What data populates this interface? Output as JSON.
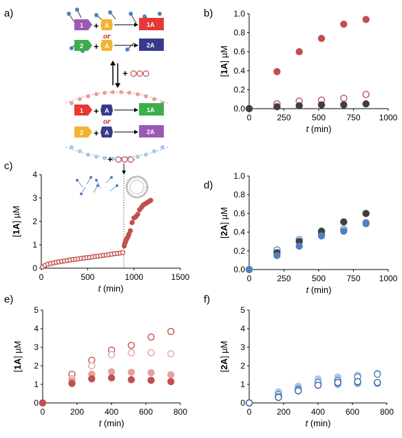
{
  "panels": {
    "a": "a)",
    "b": "b)",
    "c": "c)",
    "d": "d)",
    "e": "e)",
    "f": "f)"
  },
  "schematic": {
    "box_1": "1",
    "box_2": "2",
    "box_A": "A",
    "box_1A": "1A",
    "box_2A": "2A",
    "or": "or",
    "plus": "+"
  },
  "colors": {
    "red": "#c0504d",
    "dark": "#404040",
    "blue": "#4f81bd",
    "light_blue": "#a9c8e8",
    "light_red": "#e6a0a0",
    "purple": "#9b59b6",
    "yellow": "#f2b430",
    "green": "#3cae4a",
    "navy": "#3a3a8c",
    "box_red": "#e53935"
  },
  "chart_data": [
    {
      "panel": "b",
      "type": "scatter",
      "ylabel_parts": [
        "[",
        "1A",
        "] µM"
      ],
      "xlabel_parts": [
        "t",
        " (min)"
      ],
      "xlim": [
        0,
        1000
      ],
      "ylim": [
        0,
        1
      ],
      "xticks": [
        "0",
        "250",
        "500",
        "750",
        "1000"
      ],
      "yticks": [
        "0.0",
        "0.2",
        "0.4",
        "0.6",
        "0.8",
        "1.0"
      ],
      "series": [
        {
          "style": "filled-red",
          "x": [
            0,
            200,
            360,
            520,
            680,
            840
          ],
          "y": [
            0.0,
            0.39,
            0.6,
            0.74,
            0.89,
            0.94
          ]
        },
        {
          "style": "open-red",
          "x": [
            0,
            200,
            360,
            520,
            680,
            840
          ],
          "y": [
            0.0,
            0.05,
            0.08,
            0.09,
            0.11,
            0.15
          ]
        },
        {
          "style": "filled-dark",
          "x": [
            0,
            200,
            360,
            520,
            680,
            840
          ],
          "y": [
            0.0,
            0.02,
            0.03,
            0.04,
            0.04,
            0.05
          ]
        }
      ]
    },
    {
      "panel": "c",
      "type": "scatter",
      "ylabel_parts": [
        "[",
        "1A",
        "] µM"
      ],
      "xlabel_parts": [
        "t",
        " (min)"
      ],
      "xlim": [
        0,
        1500
      ],
      "ylim": [
        0,
        4
      ],
      "xticks": [
        "0",
        "500",
        "1000",
        "1500"
      ],
      "yticks": [
        "0",
        "1",
        "2",
        "3",
        "4"
      ],
      "vline_x": 890,
      "series": [
        {
          "style": "open-red-small",
          "x": [
            15,
            40,
            70,
            100,
            130,
            160,
            190,
            220,
            250,
            280,
            310,
            340,
            370,
            400,
            430,
            460,
            490,
            520,
            550,
            580,
            610,
            640,
            670,
            700,
            730,
            760,
            790,
            820,
            850,
            880
          ],
          "y": [
            0.05,
            0.12,
            0.17,
            0.2,
            0.22,
            0.25,
            0.27,
            0.29,
            0.31,
            0.33,
            0.35,
            0.37,
            0.38,
            0.4,
            0.42,
            0.43,
            0.45,
            0.46,
            0.48,
            0.5,
            0.51,
            0.53,
            0.55,
            0.56,
            0.58,
            0.6,
            0.62,
            0.63,
            0.65,
            0.67
          ]
        },
        {
          "style": "filled-red-small",
          "x": [
            895,
            900,
            905,
            910,
            915,
            925,
            935,
            945,
            960,
            980,
            1000,
            1020,
            1040,
            1060,
            1080,
            1100,
            1120,
            1140,
            1160,
            1180
          ],
          "y": [
            0.95,
            1.05,
            1.1,
            1.15,
            1.2,
            1.28,
            1.35,
            1.45,
            1.6,
            1.95,
            2.15,
            2.2,
            2.3,
            2.5,
            2.6,
            2.7,
            2.75,
            2.8,
            2.85,
            2.9
          ]
        }
      ]
    },
    {
      "panel": "d",
      "type": "scatter",
      "ylabel_parts": [
        "[",
        "2A",
        "] µM"
      ],
      "xlabel_parts": [
        "t",
        " (min)"
      ],
      "xlim": [
        0,
        1000
      ],
      "ylim": [
        0,
        1
      ],
      "xticks": [
        "0",
        "250",
        "500",
        "750",
        "1000"
      ],
      "yticks": [
        "0.0",
        "0.2",
        "0.4",
        "0.6",
        "0.8",
        "1.0"
      ],
      "series": [
        {
          "style": "open-blue",
          "x": [
            0,
            200,
            360,
            520,
            680,
            840
          ],
          "y": [
            0.0,
            0.21,
            0.32,
            0.38,
            0.43,
            0.5
          ]
        },
        {
          "style": "filled-dark",
          "x": [
            0,
            200,
            360,
            520,
            680,
            840
          ],
          "y": [
            0.0,
            0.18,
            0.3,
            0.41,
            0.51,
            0.6
          ]
        },
        {
          "style": "filled-blue",
          "x": [
            0,
            200,
            360,
            520,
            680,
            840
          ],
          "y": [
            0.0,
            0.15,
            0.25,
            0.36,
            0.41,
            0.49
          ]
        }
      ]
    },
    {
      "panel": "e",
      "type": "scatter",
      "ylabel_parts": [
        "[",
        "1A",
        "] µM"
      ],
      "xlabel_parts": [
        "t",
        " (min)"
      ],
      "xlim": [
        0,
        800
      ],
      "ylim": [
        0,
        5
      ],
      "xticks": [
        "0",
        "200",
        "400",
        "600",
        "800"
      ],
      "yticks": [
        "0",
        "1",
        "2",
        "3",
        "4",
        "5"
      ],
      "series": [
        {
          "style": "open-red",
          "x": [
            0,
            170,
            285,
            400,
            515,
            630,
            745
          ],
          "y": [
            0.0,
            1.55,
            2.3,
            2.85,
            3.1,
            3.55,
            3.85
          ]
        },
        {
          "style": "open-light-red",
          "x": [
            0,
            170,
            285,
            400,
            515,
            630,
            745
          ],
          "y": [
            0.0,
            1.3,
            2.0,
            2.6,
            2.7,
            2.7,
            2.65
          ]
        },
        {
          "style": "filled-light-red",
          "x": [
            0,
            170,
            285,
            400,
            515,
            630,
            745
          ],
          "y": [
            0.0,
            1.2,
            1.55,
            1.68,
            1.65,
            1.63,
            1.52
          ]
        },
        {
          "style": "filled-red",
          "x": [
            0,
            170,
            285,
            400,
            515,
            630,
            745
          ],
          "y": [
            0.0,
            1.05,
            1.3,
            1.35,
            1.25,
            1.22,
            1.15
          ]
        }
      ]
    },
    {
      "panel": "f",
      "type": "scatter",
      "ylabel_parts": [
        "[",
        "2A",
        "] µM"
      ],
      "xlabel_parts": [
        "t",
        " (min)"
      ],
      "xlim": [
        0,
        800
      ],
      "ylim": [
        0,
        5
      ],
      "xticks": [
        "0",
        "200",
        "400",
        "600",
        "800"
      ],
      "yticks": [
        "0",
        "1",
        "2",
        "3",
        "4",
        "5"
      ],
      "series": [
        {
          "style": "filled-light-blue",
          "x": [
            0,
            170,
            285,
            400,
            515,
            630,
            745
          ],
          "y": [
            0.0,
            0.6,
            0.9,
            1.3,
            1.4,
            1.5,
            1.6
          ]
        },
        {
          "style": "open-blue",
          "x": [
            0,
            170,
            285,
            400,
            515,
            630,
            745
          ],
          "y": [
            0.0,
            0.45,
            0.75,
            1.1,
            1.2,
            1.4,
            1.55
          ]
        },
        {
          "style": "filled-blue-mid",
          "x": [
            0,
            170,
            285,
            400,
            515,
            630,
            745
          ],
          "y": [
            0.0,
            0.35,
            0.7,
            0.95,
            1.0,
            1.05,
            1.05
          ]
        },
        {
          "style": "open-dark-blue",
          "x": [
            0,
            170,
            285,
            400,
            515,
            630,
            745
          ],
          "y": [
            0.0,
            0.3,
            0.65,
            0.95,
            1.1,
            1.15,
            1.1
          ]
        }
      ]
    }
  ]
}
